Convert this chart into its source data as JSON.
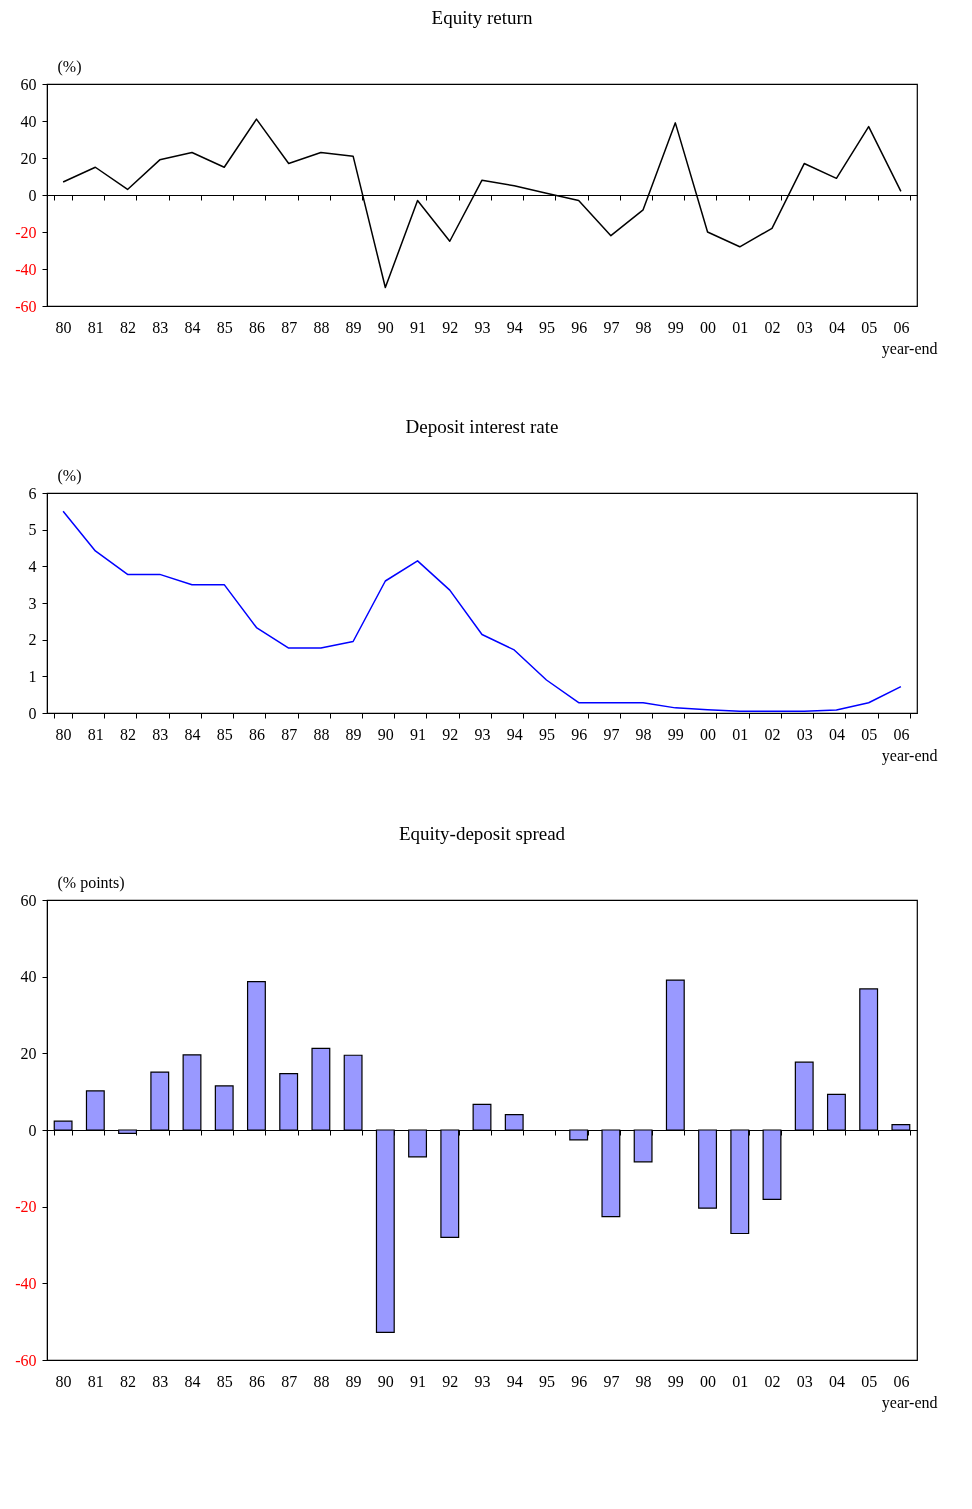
{
  "chart_data": [
    {
      "type": "line",
      "title": "Equity return",
      "ylabel": "(%)",
      "xlabel": "year-end",
      "categories": [
        "80",
        "81",
        "82",
        "83",
        "84",
        "85",
        "86",
        "87",
        "88",
        "89",
        "90",
        "91",
        "92",
        "93",
        "94",
        "95",
        "96",
        "97",
        "98",
        "99",
        "00",
        "01",
        "02",
        "03",
        "04",
        "05",
        "06"
      ],
      "series": [
        {
          "color": "#000000",
          "values": [
            7,
            15,
            3,
            19,
            23,
            15,
            41,
            17,
            23,
            21,
            -50,
            -3,
            -25,
            8,
            5,
            1,
            -3,
            -22,
            -8,
            39,
            -20,
            -28,
            -18,
            17,
            9,
            37,
            2
          ]
        }
      ],
      "ylim": [
        -60,
        60
      ],
      "yticks": [
        -60,
        -40,
        -20,
        0,
        20,
        40,
        60
      ]
    },
    {
      "type": "line",
      "title": "Deposit interest rate",
      "ylabel": "(%)",
      "xlabel": "year-end",
      "categories": [
        "80",
        "81",
        "82",
        "83",
        "84",
        "85",
        "86",
        "87",
        "88",
        "89",
        "90",
        "91",
        "92",
        "93",
        "94",
        "95",
        "96",
        "97",
        "98",
        "99",
        "00",
        "01",
        "02",
        "03",
        "04",
        "05",
        "06"
      ],
      "series": [
        {
          "color": "#0000ff",
          "values": [
            5.5,
            4.42,
            3.78,
            3.78,
            3.5,
            3.5,
            2.33,
            1.77,
            1.77,
            1.95,
            3.6,
            4.15,
            3.35,
            2.14,
            1.72,
            0.9,
            0.28,
            0.28,
            0.28,
            0.14,
            0.09,
            0.05,
            0.05,
            0.05,
            0.08,
            0.28,
            0.72
          ]
        }
      ],
      "ylim": [
        0,
        6
      ],
      "yticks": [
        0,
        1,
        2,
        3,
        4,
        5,
        6
      ]
    },
    {
      "type": "bar",
      "title": "Equity-deposit spread",
      "ylabel": "(% points)",
      "xlabel": "year-end",
      "categories": [
        "80",
        "81",
        "82",
        "83",
        "84",
        "85",
        "86",
        "87",
        "88",
        "89",
        "90",
        "91",
        "92",
        "93",
        "94",
        "95",
        "96",
        "97",
        "98",
        "99",
        "00",
        "01",
        "02",
        "03",
        "04",
        "05",
        "06"
      ],
      "series": [
        {
          "color": "#9999ff",
          "values": [
            2.3,
            10.2,
            -0.9,
            15.1,
            19.6,
            11.5,
            38.7,
            14.7,
            21.3,
            19.5,
            -52.8,
            -7,
            -28,
            6.7,
            4,
            null,
            -2.6,
            -22.6,
            -8.3,
            39.1,
            -20.4,
            -27,
            -18.1,
            17.7,
            9.3,
            36.8,
            1.4
          ]
        }
      ],
      "ylim": [
        -60,
        60
      ],
      "yticks": [
        -60,
        -40,
        -20,
        0,
        20,
        40,
        60
      ]
    }
  ]
}
